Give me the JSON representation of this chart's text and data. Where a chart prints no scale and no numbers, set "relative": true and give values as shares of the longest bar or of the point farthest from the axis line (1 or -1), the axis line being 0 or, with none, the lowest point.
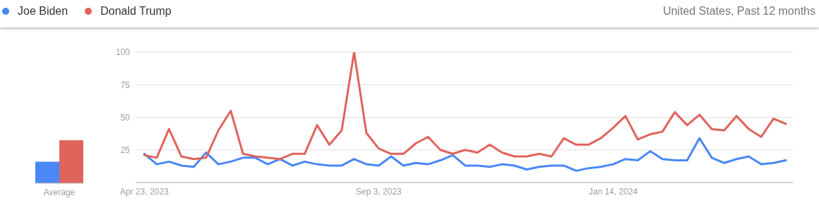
{
  "chart_data": [
    {
      "type": "line",
      "legend": "top",
      "grid": "y",
      "marker": "none",
      "line_style": "solid",
      "annotations": [
        "United States, Past 12 months"
      ],
      "x": [
        "2023-04-23",
        "2023-04-30",
        "2023-05-07",
        "2023-05-14",
        "2023-05-21",
        "2023-05-28",
        "2023-06-04",
        "2023-06-11",
        "2023-06-18",
        "2023-06-25",
        "2023-07-02",
        "2023-07-09",
        "2023-07-16",
        "2023-07-23",
        "2023-07-30",
        "2023-08-06",
        "2023-08-13",
        "2023-08-20",
        "2023-08-27",
        "2023-09-03",
        "2023-09-10",
        "2023-09-17",
        "2023-09-24",
        "2023-10-01",
        "2023-10-08",
        "2023-10-15",
        "2023-10-22",
        "2023-10-29",
        "2023-11-05",
        "2023-11-12",
        "2023-11-19",
        "2023-11-26",
        "2023-12-03",
        "2023-12-10",
        "2023-12-17",
        "2023-12-24",
        "2023-12-31",
        "2024-01-07",
        "2024-01-14",
        "2024-01-21",
        "2024-01-28",
        "2024-02-04",
        "2024-02-11",
        "2024-02-18",
        "2024-02-25",
        "2024-03-03",
        "2024-03-10",
        "2024-03-17",
        "2024-03-24",
        "2024-03-31",
        "2024-04-07",
        "2024-04-14",
        "2024-04-21"
      ],
      "xlim": [
        "2023-04-18",
        "2024-04-25"
      ],
      "xticks": [
        {
          "value": "2023-04-23",
          "label": "Apr 23, 2023"
        },
        {
          "value": "2023-09-03",
          "label": "Sep 3, 2023"
        },
        {
          "value": "2024-01-14",
          "label": "Jan 14, 2024"
        }
      ],
      "ylim": [
        0,
        100
      ],
      "yticks": [
        {
          "value": 0,
          "label": null
        },
        25,
        50,
        75,
        100
      ],
      "series": [
        {
          "name": "Joe Biden",
          "color": "#4a88f5",
          "values": [
            22,
            14,
            16,
            13,
            12,
            23,
            14,
            16,
            19,
            19,
            14,
            18,
            13,
            16,
            14,
            13,
            13,
            18,
            14,
            13,
            20,
            13,
            15,
            14,
            17,
            21,
            13,
            13,
            12,
            14,
            13,
            10,
            12,
            13,
            13,
            9,
            11,
            12,
            14,
            18,
            17,
            24,
            18,
            17,
            17,
            34,
            19,
            15,
            18,
            20,
            14,
            15,
            17
          ]
        },
        {
          "name": "Donald Trump",
          "color": "#e0645c",
          "values": [
            21,
            19,
            41,
            20,
            18,
            19,
            40,
            55,
            22,
            20,
            19,
            18,
            22,
            22,
            44,
            29,
            40,
            100,
            38,
            26,
            22,
            22,
            30,
            35,
            25,
            22,
            25,
            23,
            29,
            23,
            20,
            20,
            22,
            20,
            34,
            29,
            29,
            34,
            42,
            51,
            33,
            37,
            39,
            54,
            44,
            52,
            41,
            40,
            51,
            41,
            35,
            49,
            45
          ]
        }
      ]
    },
    {
      "type": "bar",
      "relative": true,
      "categories": [
        "Average"
      ],
      "series": [
        {
          "color": "#4a88f5",
          "values": [
            0.5
          ]
        },
        {
          "color": "#e0645c",
          "values": [
            1
          ]
        }
      ]
    }
  ]
}
